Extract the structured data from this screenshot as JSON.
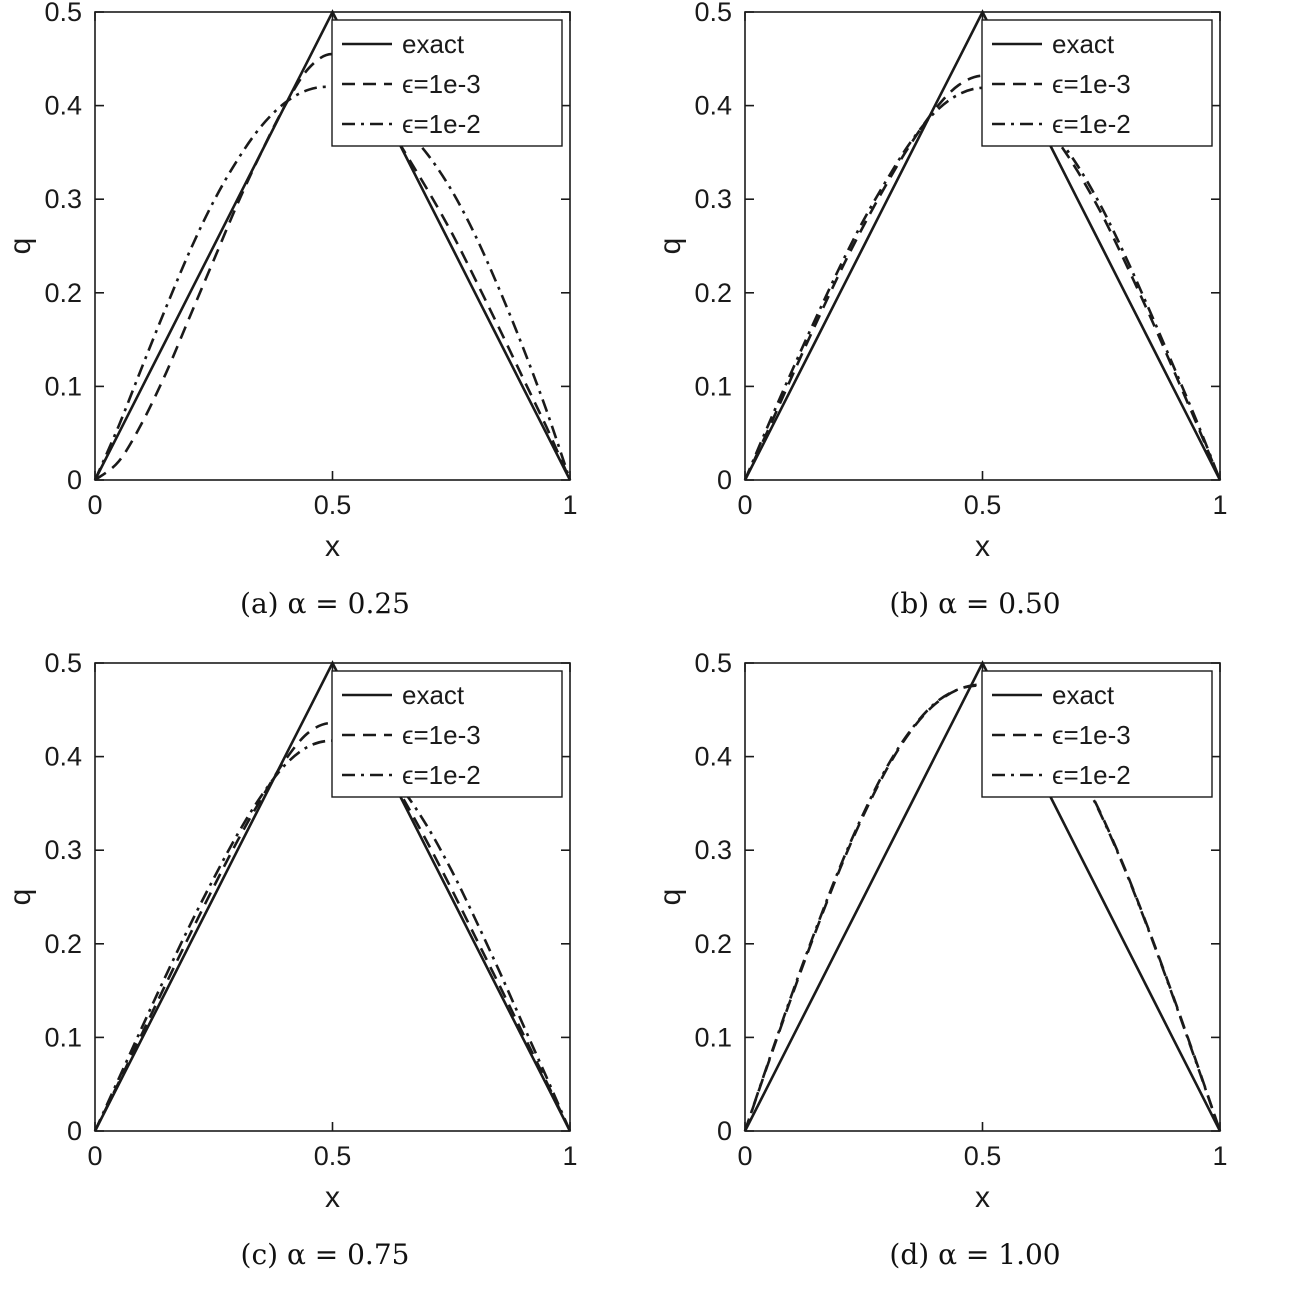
{
  "figure": {
    "background": "#ffffff",
    "line_color": "#1a1a1a"
  },
  "chart_data": [
    {
      "id": "a",
      "type": "line",
      "caption": "(a) α = 0.25",
      "xlabel": "x",
      "ylabel": "q",
      "xlim": [
        0,
        1
      ],
      "ylim": [
        0,
        0.5
      ],
      "xticks": [
        0,
        0.5,
        1
      ],
      "yticks": [
        0,
        0.1,
        0.2,
        0.3,
        0.4,
        0.5
      ],
      "grid": false,
      "legend_position": "top-right-inside",
      "x": [
        0,
        0.05,
        0.1,
        0.15,
        0.2,
        0.25,
        0.3,
        0.35,
        0.4,
        0.45,
        0.5,
        0.55,
        0.6,
        0.65,
        0.7,
        0.75,
        0.8,
        0.85,
        0.9,
        0.95,
        1
      ],
      "series": [
        {
          "name": "exact",
          "style": "solid",
          "values": [
            0,
            0.05,
            0.1,
            0.15,
            0.2,
            0.25,
            0.3,
            0.35,
            0.4,
            0.45,
            0.5,
            0.45,
            0.4,
            0.35,
            0.3,
            0.25,
            0.2,
            0.15,
            0.1,
            0.05,
            0
          ]
        },
        {
          "name": "ϵ=1e-3",
          "style": "dashed",
          "values": [
            0,
            0.02,
            0.062,
            0.115,
            0.175,
            0.235,
            0.295,
            0.35,
            0.4,
            0.44,
            0.455,
            0.437,
            0.395,
            0.352,
            0.31,
            0.265,
            0.215,
            0.163,
            0.11,
            0.057,
            0
          ]
        },
        {
          "name": "ϵ=1e-2",
          "style": "dashdot",
          "values": [
            0,
            0.058,
            0.122,
            0.185,
            0.245,
            0.298,
            0.342,
            0.378,
            0.403,
            0.417,
            0.42,
            0.414,
            0.398,
            0.376,
            0.348,
            0.31,
            0.262,
            0.205,
            0.143,
            0.075,
            0
          ]
        }
      ]
    },
    {
      "id": "b",
      "type": "line",
      "caption": "(b) α = 0.50",
      "xlabel": "x",
      "ylabel": "q",
      "xlim": [
        0,
        1
      ],
      "ylim": [
        0,
        0.5
      ],
      "xticks": [
        0,
        0.5,
        1
      ],
      "yticks": [
        0,
        0.1,
        0.2,
        0.3,
        0.4,
        0.5
      ],
      "grid": false,
      "legend_position": "top-right-inside",
      "x": [
        0,
        0.05,
        0.1,
        0.15,
        0.2,
        0.25,
        0.3,
        0.35,
        0.4,
        0.45,
        0.5,
        0.55,
        0.6,
        0.65,
        0.7,
        0.75,
        0.8,
        0.85,
        0.9,
        0.95,
        1
      ],
      "series": [
        {
          "name": "exact",
          "style": "solid",
          "values": [
            0,
            0.05,
            0.1,
            0.15,
            0.2,
            0.25,
            0.3,
            0.35,
            0.4,
            0.45,
            0.5,
            0.45,
            0.4,
            0.35,
            0.3,
            0.25,
            0.2,
            0.15,
            0.1,
            0.05,
            0
          ]
        },
        {
          "name": "ϵ=1e-3",
          "style": "dashed",
          "values": [
            0,
            0.055,
            0.112,
            0.168,
            0.222,
            0.272,
            0.318,
            0.36,
            0.396,
            0.422,
            0.432,
            0.424,
            0.4,
            0.368,
            0.33,
            0.285,
            0.233,
            0.178,
            0.12,
            0.061,
            0
          ]
        },
        {
          "name": "ϵ=1e-2",
          "style": "dashdot",
          "values": [
            0,
            0.06,
            0.118,
            0.174,
            0.228,
            0.278,
            0.322,
            0.362,
            0.393,
            0.412,
            0.419,
            0.413,
            0.397,
            0.371,
            0.336,
            0.292,
            0.24,
            0.183,
            0.124,
            0.064,
            0
          ]
        }
      ]
    },
    {
      "id": "c",
      "type": "line",
      "caption": "(c) α = 0.75",
      "xlabel": "x",
      "ylabel": "q",
      "xlim": [
        0,
        1
      ],
      "ylim": [
        0,
        0.5
      ],
      "xticks": [
        0,
        0.5,
        1
      ],
      "yticks": [
        0,
        0.1,
        0.2,
        0.3,
        0.4,
        0.5
      ],
      "grid": false,
      "legend_position": "top-right-inside",
      "x": [
        0,
        0.05,
        0.1,
        0.15,
        0.2,
        0.25,
        0.3,
        0.35,
        0.4,
        0.45,
        0.5,
        0.55,
        0.6,
        0.65,
        0.7,
        0.75,
        0.8,
        0.85,
        0.9,
        0.95,
        1
      ],
      "series": [
        {
          "name": "exact",
          "style": "solid",
          "values": [
            0,
            0.05,
            0.1,
            0.15,
            0.2,
            0.25,
            0.3,
            0.35,
            0.4,
            0.45,
            0.5,
            0.45,
            0.4,
            0.35,
            0.3,
            0.25,
            0.2,
            0.15,
            0.1,
            0.05,
            0
          ]
        },
        {
          "name": "ϵ=1e-3",
          "style": "dashed",
          "values": [
            0,
            0.052,
            0.105,
            0.158,
            0.21,
            0.261,
            0.31,
            0.355,
            0.396,
            0.426,
            0.436,
            0.426,
            0.396,
            0.354,
            0.308,
            0.259,
            0.208,
            0.157,
            0.105,
            0.053,
            0
          ]
        },
        {
          "name": "ϵ=1e-2",
          "style": "dashdot",
          "values": [
            0,
            0.056,
            0.112,
            0.167,
            0.22,
            0.27,
            0.317,
            0.358,
            0.391,
            0.411,
            0.417,
            0.411,
            0.392,
            0.363,
            0.325,
            0.279,
            0.227,
            0.172,
            0.115,
            0.058,
            0
          ]
        }
      ]
    },
    {
      "id": "d",
      "type": "line",
      "caption": "(d) α = 1.00",
      "xlabel": "x",
      "ylabel": "q",
      "xlim": [
        0,
        1
      ],
      "ylim": [
        0,
        0.5
      ],
      "xticks": [
        0,
        0.5,
        1
      ],
      "yticks": [
        0,
        0.1,
        0.2,
        0.3,
        0.4,
        0.5
      ],
      "grid": false,
      "legend_position": "top-right-inside",
      "x": [
        0,
        0.05,
        0.1,
        0.15,
        0.2,
        0.25,
        0.3,
        0.35,
        0.4,
        0.45,
        0.5,
        0.55,
        0.6,
        0.65,
        0.7,
        0.75,
        0.8,
        0.85,
        0.9,
        0.95,
        1
      ],
      "series": [
        {
          "name": "exact",
          "style": "solid",
          "values": [
            0,
            0.05,
            0.1,
            0.15,
            0.2,
            0.25,
            0.3,
            0.35,
            0.4,
            0.45,
            0.5,
            0.45,
            0.4,
            0.35,
            0.3,
            0.25,
            0.2,
            0.15,
            0.1,
            0.05,
            0
          ]
        },
        {
          "name": "ϵ=1e-3",
          "style": "dashed",
          "values": [
            0,
            0.074,
            0.146,
            0.215,
            0.28,
            0.338,
            0.388,
            0.428,
            0.456,
            0.472,
            0.477,
            0.472,
            0.456,
            0.428,
            0.388,
            0.338,
            0.28,
            0.215,
            0.146,
            0.074,
            0
          ]
        },
        {
          "name": "ϵ=1e-2",
          "style": "dashdot",
          "values": [
            0,
            0.075,
            0.148,
            0.217,
            0.282,
            0.34,
            0.39,
            0.429,
            0.457,
            0.472,
            0.476,
            0.471,
            0.455,
            0.427,
            0.387,
            0.337,
            0.279,
            0.214,
            0.145,
            0.073,
            0
          ]
        }
      ]
    }
  ]
}
